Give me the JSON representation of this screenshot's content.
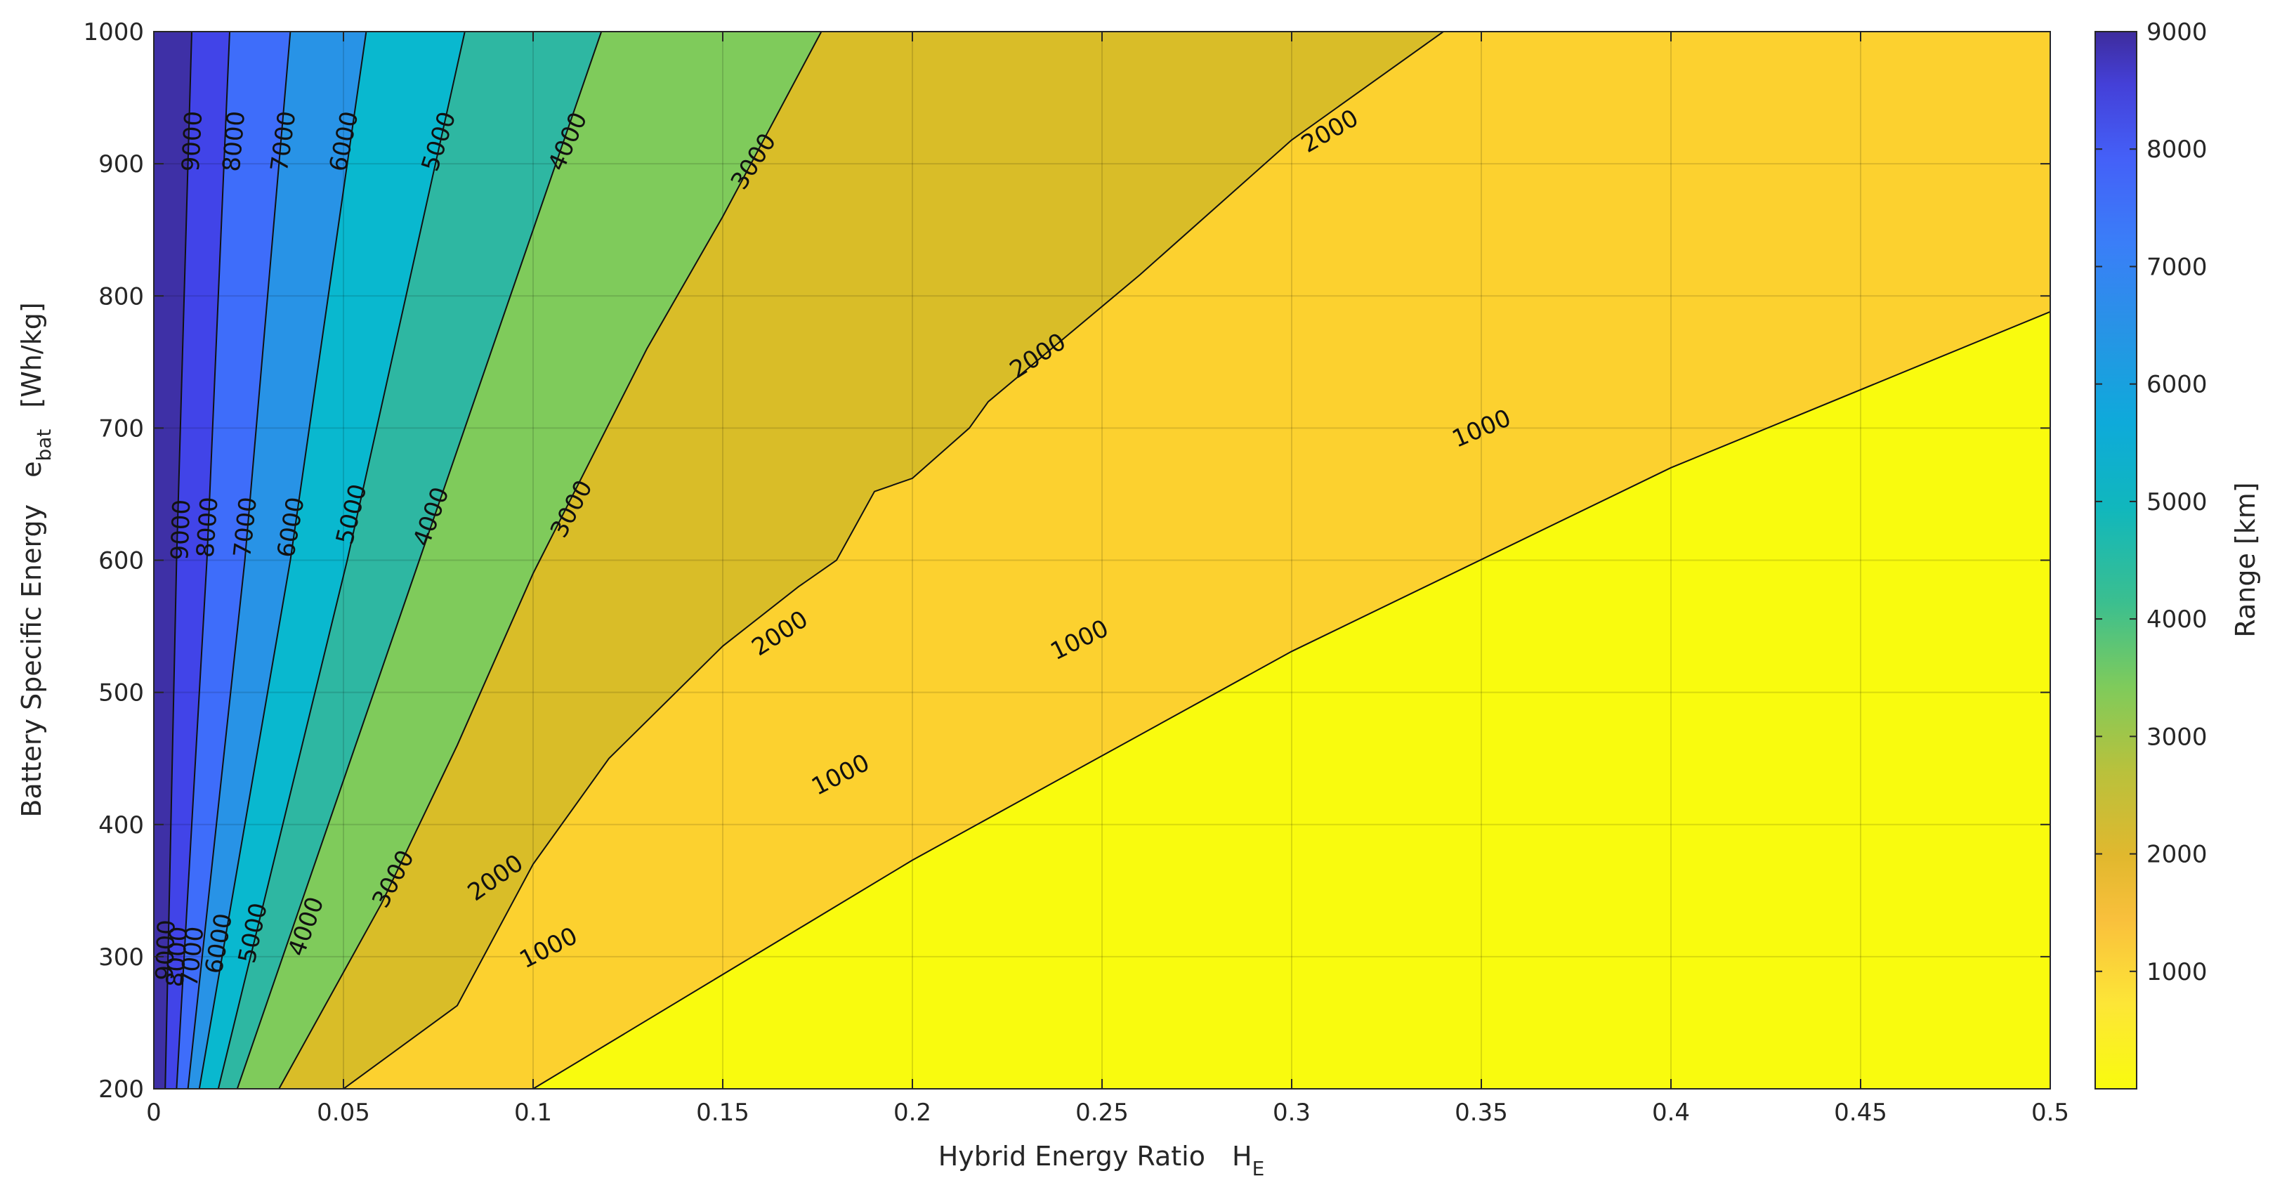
{
  "chart_data": {
    "type": "contour",
    "xlabel": "Hybrid Energy Ratio",
    "xlabel_symbol": "H",
    "xlabel_sub": "E",
    "ylabel": "Battery Specific Energy",
    "ylabel_symbol": "e",
    "ylabel_sub": "bat",
    "ylabel_unit": "[Wh/kg]",
    "colorbar_label": "Range  [km]",
    "xlim": [
      0,
      0.5
    ],
    "ylim": [
      200,
      1000
    ],
    "clim": [
      0,
      9000
    ],
    "grid": true,
    "colorbar_position": "right",
    "x_ticks": [
      0,
      0.05,
      0.1,
      0.15,
      0.2,
      0.25,
      0.3,
      0.35,
      0.4,
      0.45,
      0.5
    ],
    "x_tick_labels": [
      "0",
      "0.05",
      "0.1",
      "0.15",
      "0.2",
      "0.25",
      "0.3",
      "0.35",
      "0.4",
      "0.45",
      "0.5"
    ],
    "y_ticks": [
      200,
      300,
      400,
      500,
      600,
      700,
      800,
      900,
      1000
    ],
    "y_tick_labels": [
      "200",
      "300",
      "400",
      "500",
      "600",
      "700",
      "800",
      "900",
      "1000"
    ],
    "colorbar_ticks": [
      1000,
      2000,
      3000,
      4000,
      5000,
      6000,
      7000,
      8000,
      9000
    ],
    "colorbar_tick_labels": [
      "1000",
      "2000",
      "3000",
      "4000",
      "5000",
      "6000",
      "7000",
      "8000",
      "9000"
    ],
    "fill_colors": [
      "#f9fb0e",
      "#fcd12f",
      "#d9bd28",
      "#7fcb5b",
      "#2eb7a2",
      "#09b8cf",
      "#2893e6",
      "#3e6dfa",
      "#4144e8",
      "#3e30a6"
    ],
    "contour_levels": [
      {
        "level": 1000,
        "points": [
          [
            0.1,
            200
          ],
          [
            0.2,
            373
          ],
          [
            0.3,
            531
          ],
          [
            0.4,
            670
          ],
          [
            0.5,
            788
          ]
        ]
      },
      {
        "level": 2000,
        "points": [
          [
            0.05,
            200
          ],
          [
            0.08,
            263
          ],
          [
            0.1,
            370
          ],
          [
            0.12,
            450
          ],
          [
            0.15,
            535
          ],
          [
            0.17,
            580
          ],
          [
            0.18,
            600
          ],
          [
            0.19,
            652
          ],
          [
            0.2,
            662
          ],
          [
            0.215,
            700
          ],
          [
            0.22,
            720
          ],
          [
            0.26,
            816
          ],
          [
            0.3,
            918
          ],
          [
            0.34,
            1000
          ]
        ]
      },
      {
        "level": 3000,
        "points": [
          [
            0.033,
            200
          ],
          [
            0.06,
            340
          ],
          [
            0.08,
            460
          ],
          [
            0.1,
            590
          ],
          [
            0.13,
            760
          ],
          [
            0.15,
            860
          ],
          [
            0.176,
            1000
          ]
        ]
      },
      {
        "level": 4000,
        "points": [
          [
            0.022,
            200
          ],
          [
            0.07,
            600
          ],
          [
            0.118,
            1000
          ]
        ]
      },
      {
        "level": 5000,
        "points": [
          [
            0.017,
            200
          ],
          [
            0.051,
            600
          ],
          [
            0.082,
            1000
          ]
        ]
      },
      {
        "level": 6000,
        "points": [
          [
            0.012,
            200
          ],
          [
            0.036,
            600
          ],
          [
            0.056,
            1000
          ]
        ]
      },
      {
        "level": 7000,
        "points": [
          [
            0.009,
            200
          ],
          [
            0.024,
            600
          ],
          [
            0.036,
            1000
          ]
        ]
      },
      {
        "level": 8000,
        "points": [
          [
            0.006,
            200
          ],
          [
            0.014,
            600
          ],
          [
            0.02,
            1000
          ]
        ]
      },
      {
        "level": 9000,
        "points": [
          [
            0.003,
            200
          ],
          [
            0.006,
            600
          ],
          [
            0.01,
            1000
          ]
        ]
      }
    ],
    "contour_labels": [
      {
        "text": "1000",
        "x": 0.104,
        "y": 307,
        "angle": -27
      },
      {
        "text": "1000",
        "x": 0.181,
        "y": 438,
        "angle": -27
      },
      {
        "text": "1000",
        "x": 0.244,
        "y": 540,
        "angle": -26
      },
      {
        "text": "1000",
        "x": 0.35,
        "y": 700,
        "angle": -23
      },
      {
        "text": "2000",
        "x": 0.09,
        "y": 360,
        "angle": -35
      },
      {
        "text": "2000",
        "x": 0.165,
        "y": 545,
        "angle": -33
      },
      {
        "text": "2000",
        "x": 0.233,
        "y": 755,
        "angle": -33
      },
      {
        "text": "2000",
        "x": 0.31,
        "y": 925,
        "angle": -30
      },
      {
        "text": "3000",
        "x": 0.063,
        "y": 359,
        "angle": -62
      },
      {
        "text": "3000",
        "x": 0.11,
        "y": 639,
        "angle": -62
      },
      {
        "text": "3000",
        "x": 0.158,
        "y": 902,
        "angle": -57
      },
      {
        "text": "4000",
        "x": 0.04,
        "y": 323,
        "angle": -70
      },
      {
        "text": "4000",
        "x": 0.073,
        "y": 633,
        "angle": -70
      },
      {
        "text": "4000",
        "x": 0.109,
        "y": 917,
        "angle": -66
      },
      {
        "text": "5000",
        "x": 0.026,
        "y": 318,
        "angle": -78
      },
      {
        "text": "5000",
        "x": 0.052,
        "y": 635,
        "angle": -76
      },
      {
        "text": "5000",
        "x": 0.075,
        "y": 917,
        "angle": -72
      },
      {
        "text": "6000",
        "x": 0.017,
        "y": 310,
        "angle": -80
      },
      {
        "text": "6000",
        "x": 0.036,
        "y": 625,
        "angle": -80
      },
      {
        "text": "6000",
        "x": 0.05,
        "y": 917,
        "angle": -78
      },
      {
        "text": "7000",
        "x": 0.01,
        "y": 300,
        "angle": -84
      },
      {
        "text": "7000",
        "x": 0.024,
        "y": 625,
        "angle": -84
      },
      {
        "text": "7000",
        "x": 0.034,
        "y": 917,
        "angle": -82
      },
      {
        "text": "8000",
        "x": 0.006,
        "y": 300,
        "angle": -86
      },
      {
        "text": "8000",
        "x": 0.014,
        "y": 625,
        "angle": -86
      },
      {
        "text": "8000",
        "x": 0.021,
        "y": 917,
        "angle": -85
      },
      {
        "text": "9000",
        "x": 0.003,
        "y": 305,
        "angle": -88
      },
      {
        "text": "9000",
        "x": 0.007,
        "y": 623,
        "angle": -88
      },
      {
        "text": "9000",
        "x": 0.01,
        "y": 917,
        "angle": -87
      }
    ]
  }
}
